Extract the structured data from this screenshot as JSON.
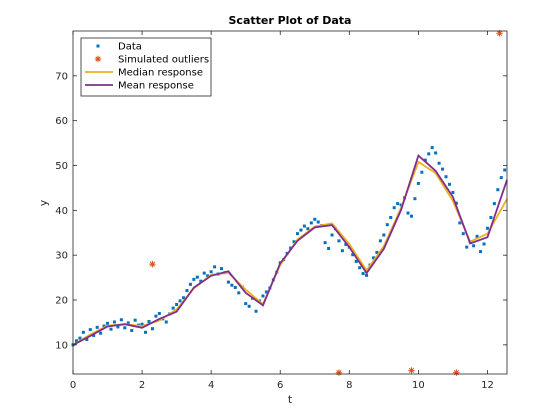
{
  "chart_data": {
    "type": "scatter",
    "title": "Scatter Plot of Data",
    "xlabel": "t",
    "ylabel": "y",
    "xlim": [
      0,
      12.566
    ],
    "ylim": [
      3.5,
      80
    ],
    "xticks": [
      0,
      2,
      4,
      6,
      8,
      10,
      12
    ],
    "yticks": [
      10,
      20,
      30,
      40,
      50,
      60,
      70
    ],
    "grid": false,
    "legend_position": "top-left",
    "series": [
      {
        "name": "Data",
        "kind": "scatter",
        "marker": "dot",
        "color": "#0072BD",
        "x": [
          0.0,
          0.1,
          0.2,
          0.3,
          0.4,
          0.5,
          0.6,
          0.7,
          0.8,
          0.9,
          1.0,
          1.1,
          1.2,
          1.3,
          1.4,
          1.5,
          1.6,
          1.7,
          1.8,
          1.9,
          2.0,
          2.1,
          2.2,
          2.3,
          2.4,
          2.5,
          2.6,
          2.7,
          2.8,
          2.9,
          3.0,
          3.1,
          3.2,
          3.3,
          3.4,
          3.5,
          3.6,
          3.7,
          3.8,
          3.9,
          4.0,
          4.1,
          4.2,
          4.3,
          4.4,
          4.5,
          4.6,
          4.7,
          4.8,
          4.9,
          5.0,
          5.1,
          5.2,
          5.3,
          5.4,
          5.5,
          5.6,
          5.7,
          5.8,
          5.9,
          6.0,
          6.1,
          6.2,
          6.3,
          6.4,
          6.5,
          6.6,
          6.7,
          6.8,
          6.9,
          7.0,
          7.1,
          7.2,
          7.3,
          7.4,
          7.5,
          7.6,
          7.7,
          7.8,
          7.9,
          8.0,
          8.1,
          8.2,
          8.3,
          8.4,
          8.5,
          8.6,
          8.7,
          8.8,
          8.9,
          9.0,
          9.1,
          9.2,
          9.3,
          9.4,
          9.5,
          9.6,
          9.7,
          9.8,
          9.9,
          10.0,
          10.1,
          10.2,
          10.3,
          10.4,
          10.5,
          10.6,
          10.7,
          10.8,
          10.9,
          11.0,
          11.1,
          11.2,
          11.3,
          11.4,
          11.5,
          11.6,
          11.7,
          11.8,
          11.9,
          12.0,
          12.1,
          12.2,
          12.3,
          12.4,
          12.5
        ],
        "y": [
          10.0,
          10.9,
          11.5,
          12.8,
          11.2,
          13.4,
          12.1,
          13.9,
          12.6,
          14.2,
          14.8,
          13.5,
          15.1,
          14.0,
          15.6,
          13.8,
          14.9,
          13.2,
          15.5,
          14.4,
          14.6,
          12.8,
          15.2,
          13.6,
          16.4,
          17.0,
          15.8,
          15.1,
          16.9,
          18.2,
          19.0,
          19.8,
          20.5,
          22.1,
          23.5,
          24.6,
          25.1,
          24.2,
          26.0,
          25.4,
          26.3,
          27.4,
          25.8,
          27.0,
          26.1,
          24.0,
          23.3,
          22.8,
          21.6,
          22.9,
          19.2,
          18.6,
          20.4,
          17.5,
          19.8,
          20.9,
          21.8,
          22.7,
          24.5,
          26.2,
          28.3,
          29.0,
          30.4,
          31.6,
          33.0,
          34.8,
          35.6,
          36.5,
          35.9,
          37.2,
          38.0,
          37.4,
          36.6,
          32.8,
          31.5,
          34.5,
          35.9,
          33.2,
          31.0,
          32.4,
          31.8,
          30.1,
          28.6,
          27.2,
          25.9,
          25.5,
          27.8,
          29.4,
          30.6,
          33.2,
          34.5,
          36.8,
          38.4,
          40.6,
          41.5,
          41.2,
          42.8,
          39.4,
          38.7,
          42.6,
          46.0,
          48.5,
          51.2,
          52.6,
          54.0,
          52.8,
          50.5,
          49.2,
          47.5,
          45.8,
          44.0,
          41.6,
          37.2,
          34.8,
          31.8,
          33.0,
          32.1,
          34.2,
          30.8,
          32.5,
          36.0,
          38.4,
          41.5,
          44.6,
          47.3,
          49.0
        ]
      },
      {
        "name": "Simulated outliers",
        "kind": "scatter",
        "marker": "asterisk",
        "color": "#D95319",
        "x": [
          2.3,
          7.7,
          9.8,
          11.1,
          12.35
        ],
        "y": [
          28.0,
          3.8,
          4.3,
          3.8,
          79.5
        ]
      },
      {
        "name": "Median response",
        "kind": "line",
        "color": "#EDB120",
        "x": [
          0.0,
          0.5,
          1.0,
          1.5,
          2.0,
          2.5,
          3.0,
          3.5,
          4.0,
          4.5,
          5.0,
          5.5,
          6.0,
          6.5,
          7.0,
          7.5,
          8.0,
          8.5,
          9.0,
          9.5,
          10.0,
          10.5,
          11.0,
          11.5,
          12.0,
          12.566
        ],
        "y": [
          10.0,
          12.3,
          14.3,
          14.6,
          14.2,
          15.4,
          17.9,
          22.6,
          25.6,
          26.1,
          22.3,
          19.1,
          27.8,
          33.5,
          36.4,
          37.1,
          32.5,
          26.6,
          32.0,
          40.6,
          50.8,
          48.3,
          42.1,
          33.0,
          34.8,
          42.5
        ]
      },
      {
        "name": "Mean response",
        "kind": "line",
        "color": "#7E2F8E",
        "x": [
          0.0,
          0.5,
          1.0,
          1.5,
          2.0,
          2.5,
          3.0,
          3.5,
          4.0,
          4.5,
          5.0,
          5.5,
          6.0,
          6.5,
          7.0,
          7.5,
          8.0,
          8.5,
          9.0,
          9.5,
          10.0,
          10.5,
          11.0,
          11.5,
          12.0,
          12.566
        ],
        "y": [
          10.0,
          12.0,
          14.1,
          14.6,
          13.8,
          15.8,
          17.4,
          22.8,
          25.4,
          26.4,
          21.6,
          18.8,
          28.2,
          33.2,
          36.2,
          36.7,
          31.8,
          26.0,
          31.4,
          40.1,
          52.2,
          48.8,
          43.0,
          32.6,
          34.0,
          46.8
        ]
      }
    ]
  },
  "colors": {
    "axes": "#262626",
    "background": "#ffffff",
    "legend_border": "#262626"
  }
}
